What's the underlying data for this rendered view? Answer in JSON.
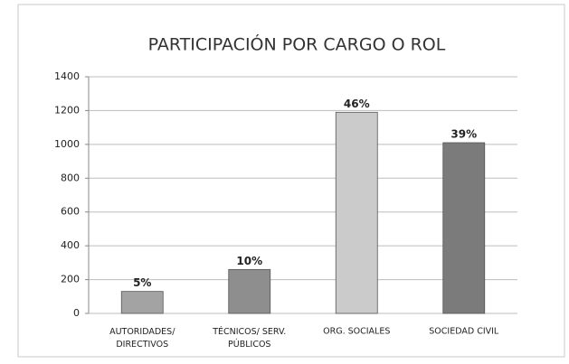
{
  "chart_data": {
    "type": "bar",
    "title": "PARTICIPACIÓN POR CARGO O ROL",
    "categories": [
      "AUTORIDADES/\nDIRECTIVOS",
      "TÉCNICOS/ SERV.\nPÚBLICOS",
      "ORG. SOCIALES",
      "SOCIEDAD CIVIL"
    ],
    "values": [
      130,
      260,
      1190,
      1010
    ],
    "value_labels": [
      "5%",
      "10%",
      "46%",
      "39%"
    ],
    "colors": [
      "#a3a3a3",
      "#8e8e8e",
      "#cbcbcb",
      "#7b7b7b"
    ],
    "ylim": [
      0,
      1400
    ],
    "yticks": [
      0,
      200,
      400,
      600,
      800,
      1000,
      1200,
      1400
    ],
    "grid": true
  }
}
